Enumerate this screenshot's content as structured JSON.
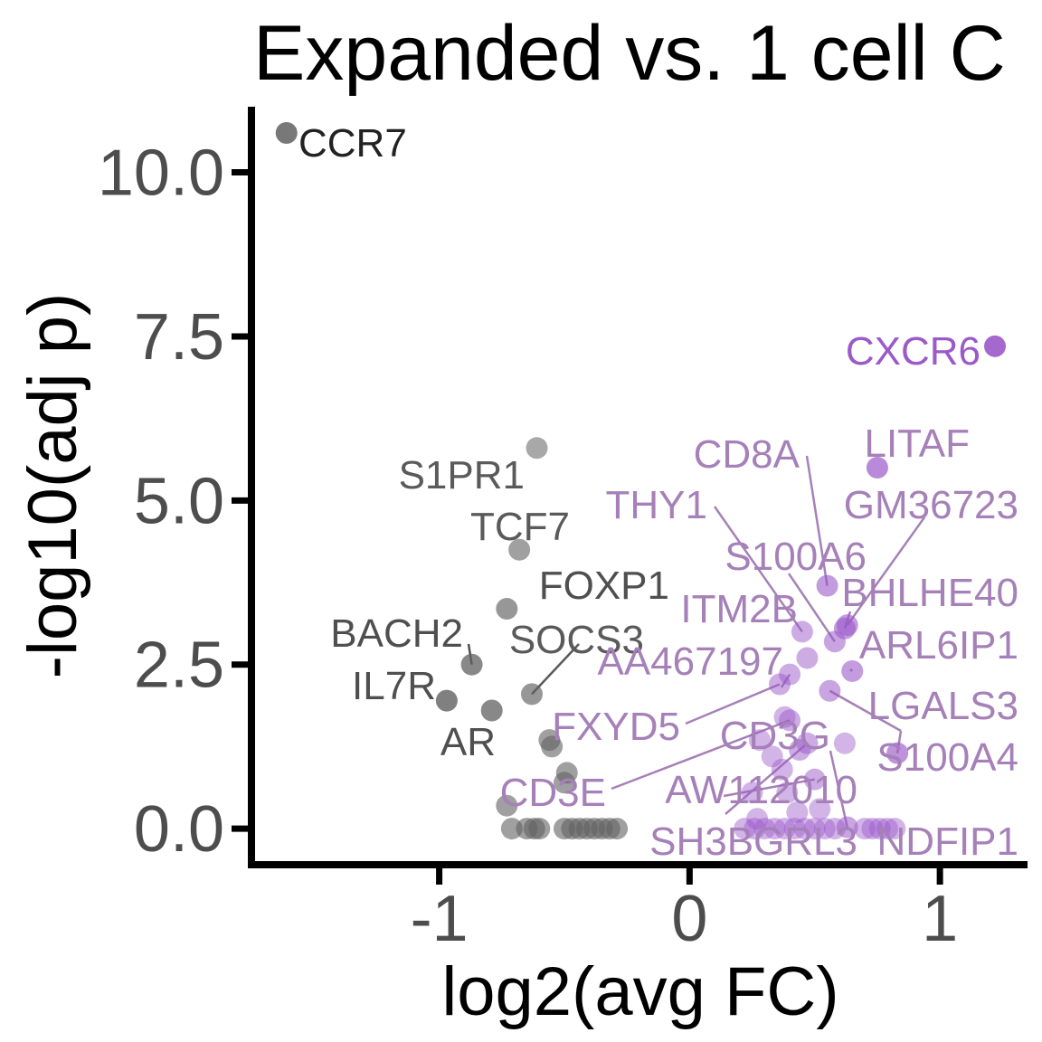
{
  "chart_data": {
    "type": "scatter",
    "title": "Expanded vs. 1 cell C",
    "xlabel": "log2(avg FC)",
    "ylabel": "-log10(adj p)",
    "xlim": [
      -1.75,
      1.35
    ],
    "ylim": [
      -0.55,
      11.0
    ],
    "xticks": [
      -1,
      0,
      1
    ],
    "xtick_labels": [
      "-1",
      "0",
      "1"
    ],
    "yticks": [
      0,
      2.5,
      5,
      7.5,
      10
    ],
    "ytick_labels": [
      "0.0",
      "2.5",
      "5.0",
      "7.5",
      "10.0"
    ],
    "grid": false,
    "legend": "none",
    "colors": {
      "down": "#606060",
      "up": "#9b59c9",
      "axis": "#000000",
      "tick_text": "#4d4d4d"
    },
    "labeled_points": [
      {
        "gene": "CCR7",
        "x": -1.61,
        "y": 10.6,
        "dir": "down",
        "alpha": 0.85
      },
      {
        "gene": "S1PR1",
        "x": -0.61,
        "y": 5.8,
        "dir": "down",
        "alpha": 0.55
      },
      {
        "gene": "TCF7",
        "x": -0.68,
        "y": 4.25,
        "dir": "down",
        "alpha": 0.6
      },
      {
        "gene": "FOXP1",
        "x": -0.73,
        "y": 3.35,
        "dir": "down",
        "alpha": 0.65
      },
      {
        "gene": "BACH2",
        "x": -0.87,
        "y": 2.5,
        "dir": "down",
        "alpha": 0.75
      },
      {
        "gene": "SOCS3",
        "x": -0.63,
        "y": 2.05,
        "dir": "down",
        "alpha": 0.65
      },
      {
        "gene": "IL7R",
        "x": -0.97,
        "y": 1.95,
        "dir": "down",
        "alpha": 0.8
      },
      {
        "gene": "AR",
        "x": -0.79,
        "y": 1.8,
        "dir": "down",
        "alpha": 0.75
      },
      {
        "gene": "CXCR6",
        "x": 1.22,
        "y": 7.35,
        "dir": "up",
        "alpha": 0.9
      },
      {
        "gene": "LITAF",
        "x": 0.75,
        "y": 5.5,
        "dir": "up",
        "alpha": 0.7
      },
      {
        "gene": "CD8A",
        "x": 0.55,
        "y": 3.7,
        "dir": "up",
        "alpha": 0.6
      },
      {
        "gene": "GM36723",
        "x": 0.63,
        "y": 3.1,
        "dir": "up",
        "alpha": 0.6
      },
      {
        "gene": "THY1",
        "x": 0.45,
        "y": 3.0,
        "dir": "up",
        "alpha": 0.5
      },
      {
        "gene": "S100A6",
        "x": 0.58,
        "y": 2.85,
        "dir": "up",
        "alpha": 0.55
      },
      {
        "gene": "BHLHE40",
        "x": 0.62,
        "y": 3.05,
        "dir": "up",
        "alpha": 0.6
      },
      {
        "gene": "ITM2B",
        "x": 0.47,
        "y": 2.6,
        "dir": "up",
        "alpha": 0.5
      },
      {
        "gene": "ARL6IP1",
        "x": 0.65,
        "y": 2.4,
        "dir": "up",
        "alpha": 0.6
      },
      {
        "gene": "AA467197",
        "x": 0.4,
        "y": 2.35,
        "dir": "up",
        "alpha": 0.5
      },
      {
        "gene": "LGALS3",
        "x": 0.56,
        "y": 2.1,
        "dir": "up",
        "alpha": 0.55
      },
      {
        "gene": "S100A4",
        "x": 0.83,
        "y": 1.15,
        "dir": "up",
        "alpha": 0.65
      },
      {
        "gene": "FXYD5",
        "x": 0.36,
        "y": 2.2,
        "dir": "up",
        "alpha": 0.5
      },
      {
        "gene": "CD3G",
        "x": 0.44,
        "y": 1.2,
        "dir": "up",
        "alpha": 0.5
      },
      {
        "gene": "AW112010",
        "x": 0.5,
        "y": 0.75,
        "dir": "up",
        "alpha": 0.5
      },
      {
        "gene": "CD3E",
        "x": 0.4,
        "y": 1.65,
        "dir": "up",
        "alpha": 0.5
      },
      {
        "gene": "SH3BGRL3",
        "x": 0.47,
        "y": 1.3,
        "dir": "up",
        "alpha": 0.5
      },
      {
        "gene": "NDFIP1",
        "x": 0.63,
        "y": 0.02,
        "dir": "up",
        "alpha": 0.55
      }
    ],
    "other_points": [
      {
        "x": -0.55,
        "y": 1.25,
        "dir": "down"
      },
      {
        "x": -0.56,
        "y": 1.35,
        "dir": "down"
      },
      {
        "x": -0.49,
        "y": 0.85,
        "dir": "down"
      },
      {
        "x": -0.5,
        "y": 0.7,
        "dir": "down"
      },
      {
        "x": -0.73,
        "y": 0.35,
        "dir": "down"
      },
      {
        "x": -0.71,
        "y": 0.0,
        "dir": "down"
      },
      {
        "x": -0.65,
        "y": 0.0,
        "dir": "down"
      },
      {
        "x": -0.62,
        "y": 0.0,
        "dir": "down"
      },
      {
        "x": -0.6,
        "y": 0.0,
        "dir": "down"
      },
      {
        "x": -0.5,
        "y": 0.0,
        "dir": "down"
      },
      {
        "x": -0.47,
        "y": 0.0,
        "dir": "down"
      },
      {
        "x": -0.44,
        "y": 0.0,
        "dir": "down"
      },
      {
        "x": -0.41,
        "y": 0.0,
        "dir": "down"
      },
      {
        "x": -0.38,
        "y": 0.0,
        "dir": "down"
      },
      {
        "x": -0.35,
        "y": 0.0,
        "dir": "down"
      },
      {
        "x": -0.32,
        "y": 0.0,
        "dir": "down"
      },
      {
        "x": -0.29,
        "y": 0.0,
        "dir": "down"
      },
      {
        "x": 0.38,
        "y": 1.7,
        "dir": "up"
      },
      {
        "x": 0.28,
        "y": 1.35,
        "dir": "up"
      },
      {
        "x": 0.33,
        "y": 1.1,
        "dir": "up"
      },
      {
        "x": 0.37,
        "y": 0.9,
        "dir": "up"
      },
      {
        "x": 0.25,
        "y": 0.55,
        "dir": "up"
      },
      {
        "x": 0.39,
        "y": 0.55,
        "dir": "up"
      },
      {
        "x": 0.62,
        "y": 1.3,
        "dir": "up"
      },
      {
        "x": 0.52,
        "y": 0.3,
        "dir": "up"
      },
      {
        "x": 0.43,
        "y": 0.25,
        "dir": "up"
      },
      {
        "x": 0.27,
        "y": 0.15,
        "dir": "up"
      },
      {
        "x": 0.22,
        "y": 0.0,
        "dir": "up"
      },
      {
        "x": 0.26,
        "y": 0.0,
        "dir": "up"
      },
      {
        "x": 0.3,
        "y": 0.0,
        "dir": "up"
      },
      {
        "x": 0.34,
        "y": 0.0,
        "dir": "up"
      },
      {
        "x": 0.38,
        "y": 0.0,
        "dir": "up"
      },
      {
        "x": 0.42,
        "y": 0.0,
        "dir": "up"
      },
      {
        "x": 0.46,
        "y": 0.0,
        "dir": "up"
      },
      {
        "x": 0.5,
        "y": 0.0,
        "dir": "up"
      },
      {
        "x": 0.54,
        "y": 0.0,
        "dir": "up"
      },
      {
        "x": 0.58,
        "y": 0.0,
        "dir": "up"
      },
      {
        "x": 0.7,
        "y": 0.0,
        "dir": "up"
      },
      {
        "x": 0.73,
        "y": 0.0,
        "dir": "up"
      },
      {
        "x": 0.76,
        "y": 0.0,
        "dir": "up"
      },
      {
        "x": 0.79,
        "y": 0.0,
        "dir": "up"
      },
      {
        "x": 0.82,
        "y": 0.0,
        "dir": "up"
      }
    ]
  }
}
